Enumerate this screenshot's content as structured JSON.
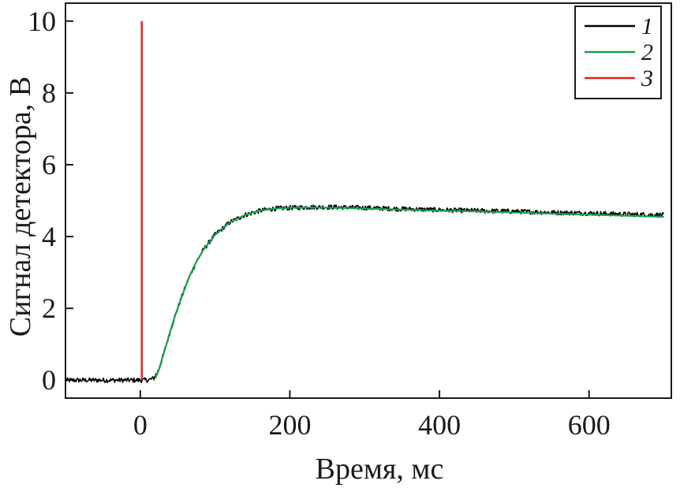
{
  "chart_data": {
    "type": "line",
    "xlabel": "Время, мс",
    "ylabel": "Сигнал детектора, В",
    "xlim": [
      -100,
      710
    ],
    "ylim": [
      -0.5,
      10.5
    ],
    "x_ticks": [
      0,
      200,
      400,
      600
    ],
    "y_ticks": [
      0,
      2,
      4,
      6,
      8,
      10
    ],
    "grid": false,
    "legend_position": "top-right",
    "series": [
      {
        "name": "1",
        "color": "#000000",
        "style": "noisy",
        "x": [
          -100,
          -50,
          0,
          10,
          18,
          25,
          35,
          45,
          55,
          65,
          75,
          85,
          100,
          120,
          140,
          160,
          180,
          200,
          230,
          260,
          300,
          350,
          400,
          450,
          500,
          550,
          600,
          650,
          700
        ],
        "y": [
          0.0,
          0.0,
          0.0,
          0.0,
          0.05,
          0.3,
          1.0,
          1.7,
          2.3,
          2.85,
          3.3,
          3.65,
          4.05,
          4.4,
          4.6,
          4.72,
          4.78,
          4.8,
          4.82,
          4.82,
          4.8,
          4.77,
          4.74,
          4.72,
          4.7,
          4.67,
          4.65,
          4.62,
          4.6
        ]
      },
      {
        "name": "2",
        "color": "#1aa050",
        "style": "smooth",
        "x": [
          20,
          25,
          35,
          45,
          55,
          65,
          75,
          85,
          100,
          120,
          140,
          160,
          180,
          200,
          230,
          260,
          300,
          350,
          400,
          450,
          500,
          550,
          600,
          650,
          700
        ],
        "y": [
          0.05,
          0.3,
          1.0,
          1.7,
          2.3,
          2.85,
          3.3,
          3.65,
          4.05,
          4.4,
          4.6,
          4.72,
          4.78,
          4.8,
          4.81,
          4.8,
          4.78,
          4.75,
          4.72,
          4.7,
          4.67,
          4.64,
          4.61,
          4.58,
          4.55
        ]
      },
      {
        "name": "3",
        "color": "#e02020",
        "style": "spike",
        "x": [
          2,
          2
        ],
        "y": [
          0,
          10.0
        ]
      }
    ]
  }
}
